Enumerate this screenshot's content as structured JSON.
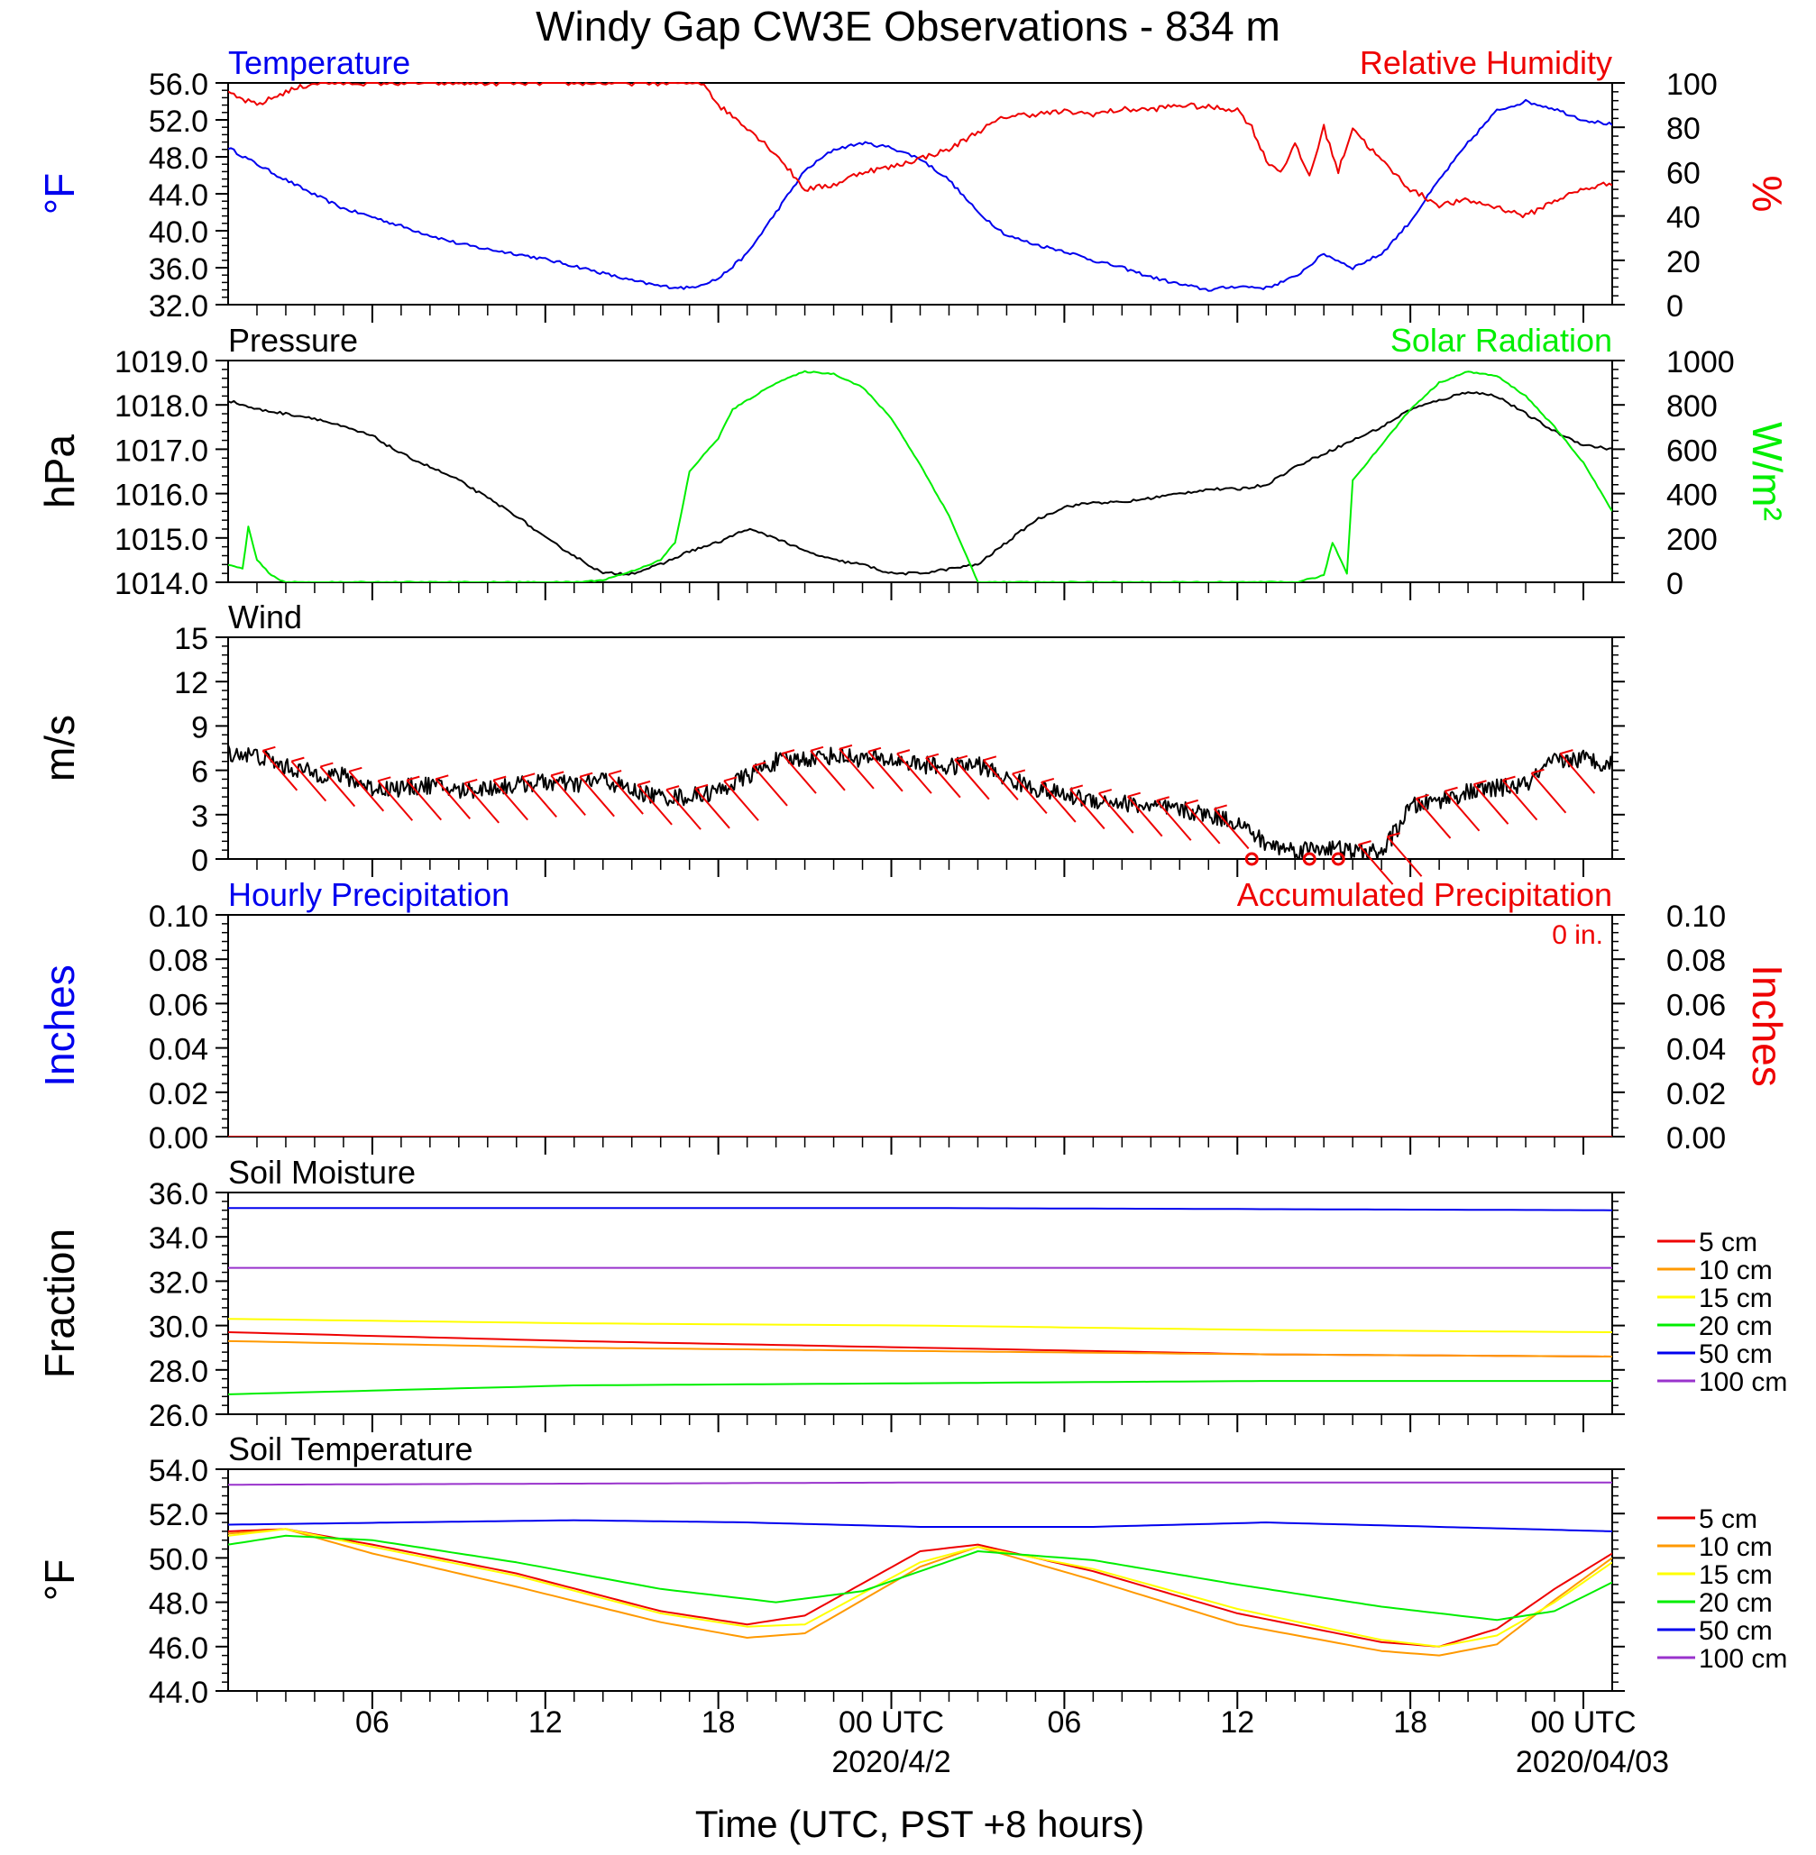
{
  "page_title": "Windy Gap CW3E Observations - 834 m",
  "xlabel": "Time (UTC, PST +8 hours)",
  "time_axis": {
    "range_hours": [
      0,
      48
    ],
    "ticks": [
      {
        "hour": 5,
        "label": "06"
      },
      {
        "hour": 11,
        "label": "12"
      },
      {
        "hour": 17,
        "label": "18"
      },
      {
        "hour": 23,
        "label": "00 UTC",
        "date": "2020/4/2"
      },
      {
        "hour": 29,
        "label": "06"
      },
      {
        "hour": 35,
        "label": "12"
      },
      {
        "hour": 41,
        "label": "18"
      },
      {
        "hour": 47,
        "label": "00 UTC",
        "date": "2020/04/03"
      }
    ]
  },
  "colors": {
    "black": "#000000",
    "blue": "#0000ee",
    "red": "#ee0000",
    "green": "#00ee00",
    "orange": "#ff9900",
    "yellow": "#ffff00",
    "purple": "#9933cc"
  },
  "chart_data": [
    {
      "type": "line",
      "title_left": "Temperature",
      "title_right": "Relative Humidity",
      "ylabel_left": "°F",
      "ylabel_right": "%",
      "ylim_left": [
        32,
        56
      ],
      "ylim_right": [
        0,
        100
      ],
      "yticks_left": [
        "32.0",
        "36.0",
        "40.0",
        "44.0",
        "48.0",
        "52.0",
        "56.0"
      ],
      "yticks_right": [
        "0",
        "20",
        "40",
        "60",
        "80",
        "100"
      ],
      "series": [
        {
          "axis": "left",
          "color": "#0000ee",
          "x": [
            0,
            1,
            2,
            3,
            4,
            5,
            6,
            7,
            8,
            9,
            10,
            11,
            12,
            13,
            14,
            15,
            16,
            17,
            18,
            19,
            20,
            21,
            22,
            23,
            24,
            25,
            26,
            27,
            28,
            29,
            30,
            31,
            32,
            33,
            34,
            35,
            36,
            37,
            38,
            39,
            40,
            41,
            42,
            43,
            44,
            45,
            46,
            47,
            48
          ],
          "values": [
            49.0,
            47.2,
            45.5,
            43.9,
            42.4,
            41.5,
            40.5,
            39.5,
            38.6,
            38.0,
            37.5,
            36.9,
            36.2,
            35.4,
            34.6,
            34.0,
            33.8,
            34.8,
            37.5,
            42.0,
            46.5,
            48.8,
            49.5,
            49.0,
            47.8,
            45.5,
            42.0,
            39.5,
            38.5,
            37.8,
            36.8,
            36.0,
            35.0,
            34.2,
            33.6,
            34.0,
            33.8,
            35.0,
            37.5,
            36.0,
            37.5,
            41.0,
            45.5,
            49.5,
            53.0,
            54.0,
            53.2,
            52.0,
            51.5
          ]
        },
        {
          "axis": "right",
          "color": "#ee0000",
          "x": [
            0,
            1,
            2,
            3,
            4,
            5,
            6,
            7,
            8,
            9,
            10,
            11,
            12,
            13,
            14,
            15,
            16,
            16.5,
            17,
            18,
            19,
            20,
            21,
            22,
            23,
            24,
            25,
            26,
            27,
            28,
            29,
            30,
            31,
            32,
            33,
            34,
            35,
            35.5,
            36,
            36.5,
            37,
            37.5,
            38,
            38.5,
            39,
            39.5,
            40,
            41,
            42,
            43,
            44,
            45,
            46,
            47,
            48
          ],
          "values": [
            95,
            90,
            96,
            100,
            100,
            100,
            100,
            100,
            100,
            100,
            100,
            100,
            100,
            100,
            100,
            100,
            100,
            100,
            90,
            80,
            68,
            52,
            54,
            60,
            62,
            66,
            70,
            78,
            85,
            86,
            87,
            86,
            88,
            88,
            90,
            89,
            88,
            80,
            65,
            60,
            72,
            58,
            80,
            60,
            80,
            72,
            65,
            52,
            45,
            47,
            44,
            40,
            47,
            52,
            55
          ]
        }
      ]
    },
    {
      "type": "line",
      "title_left": "Pressure",
      "title_right": "Solar Radiation",
      "ylabel_left": "hPa",
      "ylabel_right": "W/m²",
      "ylim_left": [
        1014,
        1019
      ],
      "ylim_right": [
        0,
        1000
      ],
      "yticks_left": [
        "1014.0",
        "1015.0",
        "1016.0",
        "1017.0",
        "1018.0",
        "1019.0"
      ],
      "yticks_right": [
        "0",
        "200",
        "400",
        "600",
        "800",
        "1000"
      ],
      "series": [
        {
          "axis": "left",
          "color": "#000000",
          "x": [
            0,
            1,
            2,
            3,
            4,
            5,
            6,
            7,
            8,
            9,
            10,
            11,
            12,
            13,
            14,
            15,
            16,
            17,
            18,
            19,
            20,
            21,
            22,
            23,
            24,
            25,
            26,
            27,
            28,
            29,
            30,
            31,
            32,
            33,
            34,
            35,
            36,
            37,
            38,
            39,
            40,
            41,
            42,
            43,
            44,
            45,
            46,
            47,
            48
          ],
          "values": [
            1018.1,
            1017.9,
            1017.8,
            1017.7,
            1017.5,
            1017.3,
            1016.9,
            1016.6,
            1016.3,
            1015.9,
            1015.5,
            1015.0,
            1014.6,
            1014.2,
            1014.2,
            1014.4,
            1014.7,
            1014.9,
            1015.2,
            1015.0,
            1014.7,
            1014.5,
            1014.4,
            1014.2,
            1014.2,
            1014.3,
            1014.4,
            1014.9,
            1015.4,
            1015.7,
            1015.8,
            1015.8,
            1015.9,
            1016.0,
            1016.1,
            1016.1,
            1016.2,
            1016.6,
            1016.9,
            1017.2,
            1017.5,
            1017.9,
            1018.1,
            1018.3,
            1018.2,
            1017.8,
            1017.4,
            1017.1,
            1017.0
          ]
        },
        {
          "axis": "right",
          "color": "#00ee00",
          "x": [
            0,
            0.5,
            0.7,
            1,
            1.5,
            2,
            3,
            6,
            9,
            12,
            13,
            14,
            15,
            15.5,
            15.7,
            16,
            17,
            17.5,
            18,
            19,
            20,
            21,
            22,
            23,
            24,
            25,
            26,
            30,
            35,
            37,
            38,
            38.3,
            38.8,
            39,
            40,
            41,
            42,
            43,
            44,
            45,
            46,
            47,
            48
          ],
          "values": [
            80,
            60,
            250,
            100,
            30,
            0,
            0,
            0,
            0,
            0,
            10,
            50,
            100,
            180,
            300,
            500,
            650,
            780,
            820,
            900,
            950,
            940,
            880,
            740,
            530,
            300,
            0,
            0,
            0,
            0,
            30,
            180,
            40,
            460,
            620,
            780,
            900,
            950,
            930,
            840,
            700,
            540,
            320
          ]
        }
      ]
    },
    {
      "type": "line",
      "title_left": "Wind",
      "ylabel_left": "m/s",
      "ylim_left": [
        0,
        15
      ],
      "yticks_left": [
        "0",
        "3",
        "6",
        "9",
        "12",
        "15"
      ],
      "series": [
        {
          "axis": "left",
          "color": "#000000",
          "x": [
            0,
            1,
            2,
            3,
            4,
            5,
            6,
            7,
            8,
            9,
            10,
            11,
            12,
            13,
            14,
            15,
            16,
            17,
            18,
            19,
            20,
            21,
            22,
            23,
            24,
            25,
            26,
            27,
            28,
            29,
            30,
            31,
            32,
            33,
            34,
            35,
            36,
            37,
            38,
            39,
            40,
            41,
            42,
            43,
            44,
            45,
            46,
            47,
            48
          ],
          "values": [
            7.2,
            7.0,
            6.2,
            5.8,
            5.6,
            4.8,
            4.8,
            5.0,
            4.6,
            4.8,
            5.0,
            5.2,
            5.0,
            5.4,
            4.6,
            4.2,
            4.2,
            4.6,
            5.6,
            6.6,
            6.8,
            7.0,
            6.8,
            6.7,
            6.4,
            6.2,
            6.4,
            5.4,
            4.8,
            4.3,
            4.0,
            3.8,
            3.5,
            3.3,
            3.0,
            2.5,
            1.0,
            0.6,
            0.8,
            0.5,
            0.4,
            3.5,
            4.0,
            4.5,
            4.8,
            5.0,
            6.6,
            6.8,
            6.4
          ]
        }
      ],
      "barb_hours": [
        1.2,
        2.2,
        3.2,
        4.2,
        5.2,
        6.2,
        7.2,
        8.2,
        9.2,
        10.2,
        11.2,
        12.2,
        13.2,
        14.2,
        15.2,
        16.2,
        17.2,
        18.2,
        19.2,
        20.2,
        21.2,
        22.2,
        23.2,
        24.2,
        25.2,
        26.2,
        27.2,
        28.2,
        29.2,
        30.2,
        31.2,
        32.2,
        33.2,
        34.2,
        39.2,
        40.2,
        41.2,
        42.2,
        43.2,
        44.2,
        45.2,
        46.2
      ],
      "calm_hours": [
        35.5,
        37.5,
        38.5
      ]
    },
    {
      "type": "line",
      "title_left": "Hourly Precipitation",
      "title_right": "Accumulated Precipitation",
      "annotation": "0 in.",
      "ylabel_left": "Inches",
      "ylabel_right": "Inches",
      "ylim_left": [
        0,
        0.1
      ],
      "ylim_right": [
        0,
        0.1
      ],
      "yticks_left": [
        "0.00",
        "0.02",
        "0.04",
        "0.06",
        "0.08",
        "0.10"
      ],
      "yticks_right": [
        "0.00",
        "0.02",
        "0.04",
        "0.06",
        "0.08",
        "0.10"
      ],
      "series": [
        {
          "axis": "left",
          "color": "#ee0000",
          "x": [
            0,
            48
          ],
          "values": [
            0,
            0
          ]
        }
      ]
    },
    {
      "type": "line",
      "title_left": "Soil Moisture",
      "ylabel_left": "Fraction",
      "ylim_left": [
        26,
        36
      ],
      "yticks_left": [
        "26.0",
        "28.0",
        "30.0",
        "32.0",
        "34.0",
        "36.0"
      ],
      "legend": [
        "5 cm",
        "10 cm",
        "15 cm",
        "20 cm",
        "50 cm",
        "100 cm"
      ],
      "series": [
        {
          "name": "5 cm",
          "color": "#ee0000",
          "x": [
            0,
            12,
            24,
            36,
            48
          ],
          "values": [
            29.7,
            29.3,
            29.0,
            28.7,
            28.6
          ]
        },
        {
          "name": "10 cm",
          "color": "#ff9900",
          "x": [
            0,
            12,
            24,
            36,
            48
          ],
          "values": [
            29.3,
            29.0,
            28.85,
            28.7,
            28.6
          ]
        },
        {
          "name": "15 cm",
          "color": "#ffff00",
          "x": [
            0,
            12,
            24,
            36,
            48
          ],
          "values": [
            30.3,
            30.1,
            30.0,
            29.8,
            29.7
          ]
        },
        {
          "name": "20 cm",
          "color": "#00ee00",
          "x": [
            0,
            12,
            24,
            36,
            48
          ],
          "values": [
            26.9,
            27.3,
            27.4,
            27.5,
            27.5
          ]
        },
        {
          "name": "50 cm",
          "color": "#0000ee",
          "x": [
            0,
            24,
            48
          ],
          "values": [
            35.3,
            35.3,
            35.2
          ]
        },
        {
          "name": "100 cm",
          "color": "#9933cc",
          "x": [
            0,
            24,
            48
          ],
          "values": [
            32.6,
            32.6,
            32.6
          ]
        }
      ]
    },
    {
      "type": "line",
      "title_left": "Soil Temperature",
      "ylabel_left": "°F",
      "ylim_left": [
        44,
        54
      ],
      "yticks_left": [
        "44.0",
        "46.0",
        "48.0",
        "50.0",
        "52.0",
        "54.0"
      ],
      "legend": [
        "5 cm",
        "10 cm",
        "15 cm",
        "20 cm",
        "50 cm",
        "100 cm"
      ],
      "series": [
        {
          "name": "5 cm",
          "color": "#ee0000",
          "x": [
            0,
            2,
            5,
            10,
            15,
            18,
            20,
            24,
            26,
            30,
            35,
            40,
            42,
            44,
            46,
            48
          ],
          "values": [
            51.2,
            51.3,
            50.6,
            49.3,
            47.6,
            47.0,
            47.4,
            50.3,
            50.6,
            49.4,
            47.5,
            46.2,
            46.0,
            46.8,
            48.6,
            50.2
          ]
        },
        {
          "name": "10 cm",
          "color": "#ff9900",
          "x": [
            0,
            2,
            5,
            10,
            15,
            18,
            20,
            24,
            26,
            30,
            35,
            40,
            42,
            44,
            46,
            48
          ],
          "values": [
            51.1,
            51.3,
            50.2,
            48.7,
            47.1,
            46.4,
            46.6,
            49.6,
            50.5,
            49.0,
            47.0,
            45.8,
            45.6,
            46.1,
            48.1,
            50.0
          ]
        },
        {
          "name": "15 cm",
          "color": "#ffff00",
          "x": [
            0,
            2,
            5,
            10,
            15,
            18,
            20,
            24,
            26,
            30,
            35,
            40,
            42,
            44,
            46,
            48
          ],
          "values": [
            51.0,
            51.3,
            50.5,
            49.2,
            47.5,
            46.9,
            47.0,
            49.8,
            50.5,
            49.5,
            47.7,
            46.3,
            46.0,
            46.5,
            48.0,
            49.8
          ]
        },
        {
          "name": "20 cm",
          "color": "#00ee00",
          "x": [
            0,
            2,
            5,
            10,
            15,
            19,
            22,
            26,
            30,
            35,
            40,
            44,
            46,
            48
          ],
          "values": [
            50.6,
            51.0,
            50.8,
            49.8,
            48.6,
            48.0,
            48.5,
            50.3,
            49.9,
            48.8,
            47.8,
            47.2,
            47.6,
            48.9
          ]
        },
        {
          "name": "50 cm",
          "color": "#0000ee",
          "x": [
            0,
            6,
            12,
            18,
            24,
            30,
            36,
            42,
            48
          ],
          "values": [
            51.5,
            51.6,
            51.7,
            51.6,
            51.4,
            51.4,
            51.6,
            51.4,
            51.2
          ]
        },
        {
          "name": "100 cm",
          "color": "#9933cc",
          "x": [
            0,
            24,
            48
          ],
          "values": [
            53.3,
            53.4,
            53.4
          ]
        }
      ]
    }
  ]
}
